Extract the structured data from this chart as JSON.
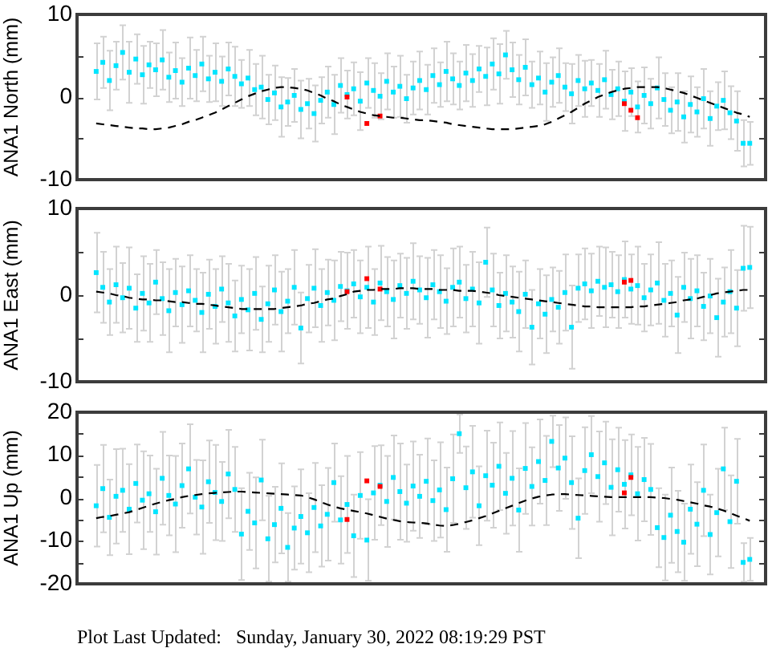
{
  "chart_data": [
    {
      "type": "scatter",
      "ylabel": "ANA1 North (mm)",
      "tick_labels": "y",
      "marker": "square",
      "ylim": [
        -10,
        10
      ],
      "yticks": [
        -10,
        {
          "value": -5,
          "label": null
        },
        0,
        {
          "value": 5,
          "label": null
        },
        10
      ],
      "categories": [
        null,
        null,
        null,
        null,
        null,
        null,
        null,
        null,
        null,
        null,
        null,
        null,
        null,
        null,
        null,
        null,
        null,
        null,
        null,
        null,
        null,
        null,
        null,
        null,
        null,
        null,
        null,
        null,
        null,
        null,
        null,
        null,
        null,
        null,
        null,
        null,
        null,
        null,
        null,
        null,
        null,
        null,
        null,
        null,
        null,
        null,
        null,
        null,
        null,
        null,
        null,
        null,
        null,
        null,
        null,
        null,
        null,
        null,
        null,
        null,
        null,
        null,
        null,
        null,
        null,
        null,
        null,
        null,
        null,
        null,
        null,
        null,
        null,
        null,
        null,
        null,
        null,
        null,
        null,
        null,
        null,
        null,
        null,
        null,
        null,
        null,
        null,
        null,
        null,
        null,
        null,
        null,
        null,
        null,
        null,
        null,
        null,
        null,
        null,
        null
      ],
      "series": [
        {
          "color": "#00e5ff",
          "values": [
            3.1,
            4.2,
            2.0,
            3.8,
            5.4,
            3.0,
            4.6,
            2.7,
            3.9,
            3.3,
            4.5,
            2.4,
            3.2,
            1.8,
            3.5,
            2.6,
            4.0,
            2.2,
            3.0,
            1.9,
            3.4,
            2.5,
            1.6,
            2.3,
            0.9,
            1.2,
            -0.3,
            0.5,
            -1.2,
            -0.6,
            0.2,
            -1.5,
            -0.8,
            -2.0,
            -0.4,
            0.6,
            -0.9,
            1.4,
            0.3,
            1.0,
            -0.5,
            1.7,
            0.8,
            0.1,
            1.9,
            0.6,
            1.3,
            -0.2,
            1.1,
            2.0,
            0.9,
            2.6,
            1.5,
            3.1,
            2.2,
            1.4,
            2.9,
            2.0,
            3.4,
            2.5,
            4.0,
            2.8,
            5.1,
            3.3,
            2.1,
            3.6,
            1.5,
            2.3,
            0.6,
            1.8,
            2.6,
            1.2,
            0.4,
            2.0,
            1.0,
            1.7,
            0.8,
            2.1,
            0.3,
            1.0,
            -0.5,
            0.6,
            -1.2,
            0.2,
            -0.8,
            1.1,
            -0.3,
            -1.6,
            -0.6,
            -2.4,
            -0.9,
            -1.8,
            -0.2,
            -2.6,
            -1.1,
            -0.4,
            -1.9,
            -2.9,
            -5.6,
            -5.6
          ],
          "errors": [
            3.4,
            3.1,
            3.6,
            2.9,
            3.3,
            3.7,
            3.0,
            3.5,
            2.8,
            3.2,
            3.6,
            3.0,
            3.4,
            2.9,
            3.7,
            3.1,
            3.3,
            2.8,
            3.5,
            3.0,
            3.2,
            3.6,
            2.9,
            3.4,
            3.1,
            3.8,
            3.0,
            3.3,
            3.6,
            2.9,
            3.2,
            3.5,
            3.0,
            3.4,
            2.8,
            3.1,
            3.6,
            3.3,
            2.9,
            3.2,
            3.5,
            3.0,
            3.3,
            2.8,
            3.4,
            3.1,
            3.7,
            2.9,
            3.2,
            3.5,
            3.0,
            3.3,
            2.7,
            3.6,
            3.1,
            2.9,
            3.4,
            3.2,
            2.8,
            3.5,
            3.1,
            3.6,
            2.9,
            3.3,
            3.0,
            3.4,
            2.8,
            3.2,
            3.5,
            3.0,
            3.3,
            2.9,
            3.6,
            3.1,
            3.4,
            2.8,
            3.2,
            3.5,
            3.0,
            3.3,
            3.6,
            2.9,
            3.1,
            3.4,
            3.0,
            3.7,
            3.2,
            2.8,
            3.5,
            3.1,
            3.4,
            3.0,
            3.6,
            3.3,
            2.9,
            3.5,
            3.2,
            3.6,
            2.8,
            2.6
          ]
        },
        {
          "color": "#ff0000",
          "values": [
            null,
            null,
            null,
            null,
            null,
            null,
            null,
            null,
            null,
            null,
            null,
            null,
            null,
            null,
            null,
            null,
            null,
            null,
            null,
            null,
            null,
            null,
            null,
            null,
            null,
            null,
            null,
            null,
            null,
            null,
            null,
            null,
            null,
            null,
            null,
            null,
            null,
            null,
            0,
            null,
            null,
            -3.2,
            null,
            -2.3,
            null,
            null,
            null,
            null,
            null,
            null,
            null,
            null,
            null,
            null,
            null,
            null,
            null,
            null,
            null,
            null,
            null,
            null,
            null,
            null,
            null,
            null,
            null,
            null,
            null,
            null,
            null,
            null,
            null,
            null,
            null,
            null,
            null,
            null,
            null,
            null,
            -0.8,
            -1.6,
            -2.5,
            null,
            null,
            null,
            null,
            null,
            null,
            null,
            null,
            null,
            null,
            null,
            null,
            null,
            null,
            null,
            null,
            null
          ]
        },
        {
          "type": "line",
          "marker": "none",
          "line_style": "dashed",
          "color": "#000000",
          "values": [
            -3.2,
            -3.3,
            -3.4,
            -3.5,
            -3.6,
            -3.7,
            -3.8,
            -3.8,
            -3.9,
            -3.9,
            -3.8,
            -3.7,
            -3.5,
            -3.3,
            -3.0,
            -2.8,
            -2.5,
            -2.2,
            -1.9,
            -1.5,
            -1.1,
            -0.7,
            -0.3,
            0.1,
            0.4,
            0.7,
            0.9,
            1.1,
            1.2,
            1.2,
            1.1,
            1.0,
            0.8,
            0.5,
            0.2,
            -0.2,
            -0.5,
            -0.9,
            -1.2,
            -1.5,
            -1.8,
            -2.0,
            -2.2,
            -2.3,
            -2.4,
            -2.5,
            -2.5,
            -2.6,
            -2.7,
            -2.8,
            -2.8,
            -2.9,
            -3.0,
            -3.1,
            -3.3,
            -3.4,
            -3.5,
            -3.6,
            -3.7,
            -3.8,
            -3.9,
            -3.9,
            -3.9,
            -3.9,
            -3.8,
            -3.7,
            -3.6,
            -3.5,
            -3.3,
            -3.0,
            -2.6,
            -2.2,
            -1.8,
            -1.3,
            -0.8,
            -0.4,
            0.0,
            0.3,
            0.6,
            0.8,
            1.0,
            1.1,
            1.2,
            1.2,
            1.2,
            1.2,
            1.1,
            0.9,
            0.7,
            0.5,
            0.2,
            -0.1,
            -0.4,
            -0.7,
            -1.0,
            -1.3,
            -1.6,
            -1.9,
            -2.1,
            -2.4
          ]
        }
      ]
    },
    {
      "type": "scatter",
      "ylabel": "ANA1 East (mm)",
      "tick_labels": "y",
      "marker": "square",
      "ylim": [
        -10,
        10
      ],
      "yticks": [
        -10,
        {
          "value": -5,
          "label": null
        },
        0,
        {
          "value": 5,
          "label": null
        },
        10
      ],
      "categories": [
        null,
        null,
        null,
        null,
        null,
        null,
        null,
        null,
        null,
        null,
        null,
        null,
        null,
        null,
        null,
        null,
        null,
        null,
        null,
        null,
        null,
        null,
        null,
        null,
        null,
        null,
        null,
        null,
        null,
        null,
        null,
        null,
        null,
        null,
        null,
        null,
        null,
        null,
        null,
        null,
        null,
        null,
        null,
        null,
        null,
        null,
        null,
        null,
        null,
        null,
        null,
        null,
        null,
        null,
        null,
        null,
        null,
        null,
        null,
        null,
        null,
        null,
        null,
        null,
        null,
        null,
        null,
        null,
        null,
        null,
        null,
        null,
        null,
        null,
        null,
        null,
        null,
        null,
        null,
        null,
        null,
        null,
        null,
        null,
        null,
        null,
        null,
        null,
        null,
        null,
        null,
        null,
        null,
        null,
        null,
        null,
        null,
        null,
        null,
        null
      ],
      "series": [
        {
          "color": "#00e5ff",
          "values": [
            2.6,
            0.9,
            -0.8,
            1.2,
            -0.3,
            0.8,
            -1.5,
            0.2,
            -0.9,
            1.5,
            -0.4,
            -1.8,
            0.3,
            -1.1,
            0.5,
            -0.6,
            -2.0,
            0.1,
            -1.3,
            0.7,
            -0.9,
            -2.4,
            -0.5,
            -1.7,
            0.2,
            -2.8,
            -1.0,
            0.6,
            -1.9,
            -0.7,
            0.9,
            -3.8,
            -0.4,
            0.8,
            -1.2,
            0.3,
            -0.6,
            1.0,
            0.5,
            1.3,
            -0.2,
            0.9,
            -0.8,
            1.4,
            0.4,
            -0.5,
            1.1,
            0.2,
            1.6,
            0.6,
            -0.3,
            1.2,
            0.4,
            -0.7,
            0.9,
            1.5,
            -0.4,
            0.7,
            -0.9,
            3.8,
            0.6,
            -1.2,
            0.2,
            -0.8,
            -1.9,
            0.1,
            -3.7,
            -1.0,
            -2.2,
            -0.5,
            -1.4,
            0.3,
            -3.7,
            0.8,
            1.3,
            0.5,
            1.6,
            0.9,
            1.2,
            0.4,
            1.8,
            0.7,
            1.1,
            -0.3,
            0.6,
            1.4,
            -0.6,
            0.2,
            -2.3,
            0.9,
            -0.4,
            0.5,
            -1.3,
            -0.1,
            -2.6,
            -0.8,
            0.4,
            -1.5,
            3.1,
            3.2
          ],
          "errors": [
            4.6,
            4.1,
            3.8,
            4.4,
            4.0,
            4.7,
            3.9,
            4.3,
            4.5,
            3.7,
            4.2,
            4.8,
            3.9,
            4.4,
            4.1,
            3.6,
            4.6,
            4.0,
            4.3,
            3.8,
            4.5,
            4.1,
            3.9,
            4.7,
            4.2,
            3.8,
            4.4,
            4.0,
            4.6,
            3.7,
            4.3,
            4.1,
            3.9,
            4.5,
            4.2,
            3.8,
            4.6,
            4.0,
            4.4,
            3.9,
            4.2,
            4.7,
            3.8,
            4.3,
            4.0,
            4.5,
            3.7,
            4.1,
            4.4,
            3.9,
            4.6,
            4.0,
            4.2,
            3.8,
            4.5,
            4.1,
            3.9,
            4.3,
            4.7,
            4.0,
            4.2,
            3.8,
            4.4,
            4.1,
            4.6,
            3.9,
            4.3,
            4.0,
            4.5,
            3.7,
            4.2,
            4.4,
            4.8,
            3.9,
            4.1,
            4.3,
            4.0,
            4.6,
            3.8,
            4.2,
            4.4,
            4.0,
            4.5,
            3.9,
            4.1,
            4.7,
            4.2,
            3.8,
            4.4,
            4.0,
            4.6,
            4.1,
            3.9,
            4.3,
            4.5,
            4.0,
            4.8,
            4.4,
            4.9,
            4.7
          ]
        },
        {
          "color": "#ff0000",
          "values": [
            null,
            null,
            null,
            null,
            null,
            null,
            null,
            null,
            null,
            null,
            null,
            null,
            null,
            null,
            null,
            null,
            null,
            null,
            null,
            null,
            null,
            null,
            null,
            null,
            null,
            null,
            null,
            null,
            null,
            null,
            null,
            null,
            null,
            null,
            null,
            null,
            null,
            null,
            0.4,
            null,
            null,
            1.9,
            null,
            0.7,
            null,
            null,
            null,
            null,
            null,
            null,
            null,
            null,
            null,
            null,
            null,
            null,
            null,
            null,
            null,
            null,
            null,
            null,
            null,
            null,
            null,
            null,
            null,
            null,
            null,
            null,
            null,
            null,
            null,
            null,
            null,
            null,
            null,
            null,
            null,
            null,
            1.5,
            1.7,
            null,
            null,
            null,
            null,
            null,
            null,
            null,
            null,
            null,
            null,
            null,
            null,
            null,
            null,
            null,
            null,
            null,
            null
          ]
        },
        {
          "type": "line",
          "marker": "none",
          "line_style": "dashed",
          "color": "#000000",
          "values": [
            0.4,
            0.3,
            0.2,
            0.0,
            -0.1,
            -0.3,
            -0.4,
            -0.5,
            -0.5,
            -0.6,
            -0.6,
            -0.7,
            -0.8,
            -0.8,
            -0.9,
            -1.0,
            -1.0,
            -1.1,
            -1.2,
            -1.3,
            -1.4,
            -1.5,
            -1.6,
            -1.6,
            -1.6,
            -1.6,
            -1.6,
            -1.6,
            -1.5,
            -1.4,
            -1.3,
            -1.2,
            -1.0,
            -0.9,
            -0.7,
            -0.5,
            -0.4,
            -0.1,
            0.1,
            0.4,
            0.5,
            0.6,
            0.6,
            0.7,
            0.7,
            0.7,
            0.8,
            0.8,
            0.8,
            0.7,
            0.7,
            0.7,
            0.6,
            0.6,
            0.6,
            0.5,
            0.5,
            0.5,
            0.4,
            0.3,
            0.2,
            0.0,
            -0.1,
            -0.2,
            -0.3,
            -0.4,
            -0.5,
            -0.6,
            -0.7,
            -0.8,
            -0.9,
            -1.0,
            -1.1,
            -1.2,
            -1.3,
            -1.3,
            -1.4,
            -1.4,
            -1.4,
            -1.4,
            -1.4,
            -1.4,
            -1.3,
            -1.3,
            -1.2,
            -1.1,
            -1.0,
            -0.9,
            -0.8,
            -0.6,
            -0.5,
            -0.4,
            -0.2,
            0.0,
            0.2,
            0.3,
            0.4,
            0.5,
            0.6,
            0.6
          ]
        }
      ]
    },
    {
      "type": "scatter",
      "ylabel": "ANA1 Up (mm)",
      "tick_labels": "y",
      "marker": "square",
      "ylim": [
        -20,
        20
      ],
      "yticks": [
        -20,
        {
          "value": -15,
          "label": null
        },
        -10,
        {
          "value": -5,
          "label": null
        },
        0,
        {
          "value": 5,
          "label": null
        },
        10,
        {
          "value": 15,
          "label": null
        },
        20
      ],
      "annotations": [
        "Plot Last Updated:   Sunday, January 30, 2022 08:19:29 PST"
      ],
      "categories": [
        null,
        null,
        null,
        null,
        null,
        null,
        null,
        null,
        null,
        null,
        null,
        null,
        null,
        null,
        null,
        null,
        null,
        null,
        null,
        null,
        null,
        null,
        null,
        null,
        null,
        null,
        null,
        null,
        null,
        null,
        null,
        null,
        null,
        null,
        null,
        null,
        null,
        null,
        null,
        null,
        null,
        null,
        null,
        null,
        null,
        null,
        null,
        null,
        null,
        null,
        null,
        null,
        null,
        null,
        null,
        null,
        null,
        null,
        null,
        null,
        null,
        null,
        null,
        null,
        null,
        null,
        null,
        null,
        null,
        null,
        null,
        null,
        null,
        null,
        null,
        null,
        null,
        null,
        null,
        null,
        null,
        null,
        null,
        null,
        null,
        null,
        null,
        null,
        null,
        null,
        null,
        null,
        null,
        null,
        null,
        null,
        null,
        null,
        null,
        null
      ],
      "series": [
        {
          "color": "#00e5ff",
          "values": [
            -1.8,
            2.2,
            -4.5,
            0.4,
            1.8,
            -2.6,
            3.4,
            -0.5,
            1.0,
            -3.2,
            4.6,
            0.6,
            -1.4,
            2.9,
            6.8,
            0.2,
            -2.1,
            3.8,
            1.3,
            -0.8,
            5.6,
            2.0,
            -8.4,
            -3.1,
            -5.8,
            4.2,
            -9.5,
            -6.2,
            -2.4,
            -11.5,
            -7.0,
            -4.3,
            -8.1,
            -2.2,
            -6.5,
            -3.8,
            3.6,
            -5.1,
            -1.5,
            -8.8,
            0.6,
            -9.8,
            1.2,
            3.0,
            -0.8,
            4.8,
            1.5,
            -1.2,
            2.8,
            0.4,
            3.9,
            -0.6,
            1.9,
            -2.7,
            4.5,
            15.0,
            2.4,
            6.1,
            -1.8,
            5.2,
            3.0,
            7.4,
            1.1,
            4.6,
            -2.8,
            6.9,
            2.7,
            8.5,
            4.1,
            13.2,
            7.0,
            9.3,
            3.6,
            -4.7,
            6.4,
            10.1,
            5.0,
            8.2,
            2.5,
            6.6,
            3.2,
            5.4,
            1.0,
            4.3,
            2.0,
            -6.9,
            -9.2,
            -4.0,
            -7.8,
            -10.3,
            -2.6,
            -6.1,
            1.8,
            -8.5,
            -3.4,
            6.8,
            -5.5,
            3.9,
            -15.0,
            -14.3
          ],
          "errors": [
            9.5,
            10.2,
            8.8,
            11.0,
            9.7,
            10.5,
            9.1,
            11.4,
            8.9,
            10.0,
            10.8,
            9.3,
            11.2,
            9.8,
            10.4,
            8.7,
            10.9,
            9.6,
            11.1,
            9.2,
            10.3,
            9.9,
            10.7,
            9.0,
            10.6,
            9.4,
            10.0,
            8.8,
            10.5,
            8.0,
            9.7,
            11.0,
            9.2,
            10.4,
            9.5,
            10.8,
            9.1,
            10.2,
            11.3,
            9.6,
            10.1,
            9.5,
            10.9,
            9.3,
            10.6,
            9.8,
            11.2,
            9.0,
            10.4,
            9.7,
            10.0,
            9.4,
            11.1,
            9.8,
            10.3,
            4.5,
            9.6,
            10.7,
            9.2,
            10.5,
            9.9,
            10.2,
            9.4,
            11.0,
            9.7,
            10.6,
            9.1,
            9.8,
            10.4,
            6.0,
            10.0,
            9.5,
            10.8,
            9.3,
            10.1,
            9.0,
            10.5,
            9.6,
            11.2,
            9.8,
            10.3,
            9.4,
            10.9,
            9.7,
            10.6,
            9.2,
            10.0,
            11.1,
            9.5,
            9.0,
            10.4,
            9.8,
            10.7,
            9.3,
            10.2,
            9.6,
            10.8,
            9.9,
            4.5,
            5.0
          ]
        },
        {
          "color": "#ff0000",
          "values": [
            null,
            null,
            null,
            null,
            null,
            null,
            null,
            null,
            null,
            null,
            null,
            null,
            null,
            null,
            null,
            null,
            null,
            null,
            null,
            null,
            null,
            null,
            null,
            null,
            null,
            null,
            null,
            null,
            null,
            null,
            null,
            null,
            null,
            null,
            null,
            null,
            null,
            null,
            -5.0,
            null,
            null,
            4.0,
            null,
            2.7,
            null,
            null,
            null,
            null,
            null,
            null,
            null,
            null,
            null,
            null,
            null,
            null,
            null,
            null,
            null,
            null,
            null,
            null,
            null,
            null,
            null,
            null,
            null,
            null,
            null,
            null,
            null,
            null,
            null,
            null,
            null,
            null,
            null,
            null,
            null,
            null,
            1.2,
            4.8,
            null,
            null,
            null,
            null,
            null,
            null,
            null,
            null,
            null,
            null,
            null,
            null,
            null,
            null,
            null,
            null,
            null,
            null
          ]
        },
        {
          "type": "line",
          "marker": "none",
          "line_style": "dashed",
          "color": "#000000",
          "values": [
            -4.7,
            -4.4,
            -4.2,
            -3.9,
            -3.6,
            -3.3,
            -2.8,
            -2.3,
            -1.8,
            -1.3,
            -0.9,
            -0.5,
            -0.2,
            0.2,
            0.5,
            0.7,
            0.9,
            1.1,
            1.2,
            1.3,
            1.4,
            1.5,
            1.5,
            1.4,
            1.3,
            1.2,
            1.1,
            1.0,
            0.9,
            0.8,
            0.7,
            0.6,
            0.2,
            -0.3,
            -0.9,
            -1.5,
            -2.0,
            -2.4,
            -2.7,
            -3.0,
            -3.3,
            -3.6,
            -4.0,
            -4.4,
            -4.8,
            -5.1,
            -5.4,
            -5.6,
            -5.7,
            -5.8,
            -5.9,
            -6.2,
            -6.4,
            -6.5,
            -6.3,
            -6.0,
            -5.6,
            -5.2,
            -4.7,
            -4.2,
            -3.6,
            -3.0,
            -2.4,
            -1.8,
            -1.2,
            -0.6,
            -0.1,
            0.3,
            0.6,
            0.8,
            0.9,
            0.9,
            0.8,
            0.7,
            0.6,
            0.5,
            0.4,
            0.3,
            0.2,
            0.2,
            0.2,
            0.2,
            0.2,
            0.2,
            0.2,
            0.1,
            0.0,
            -0.2,
            -0.4,
            -0.7,
            -1.0,
            -1.3,
            -1.7,
            -2.0,
            -2.4,
            -2.9,
            -3.5,
            -4.1,
            -4.7,
            -5.3
          ]
        }
      ]
    }
  ]
}
